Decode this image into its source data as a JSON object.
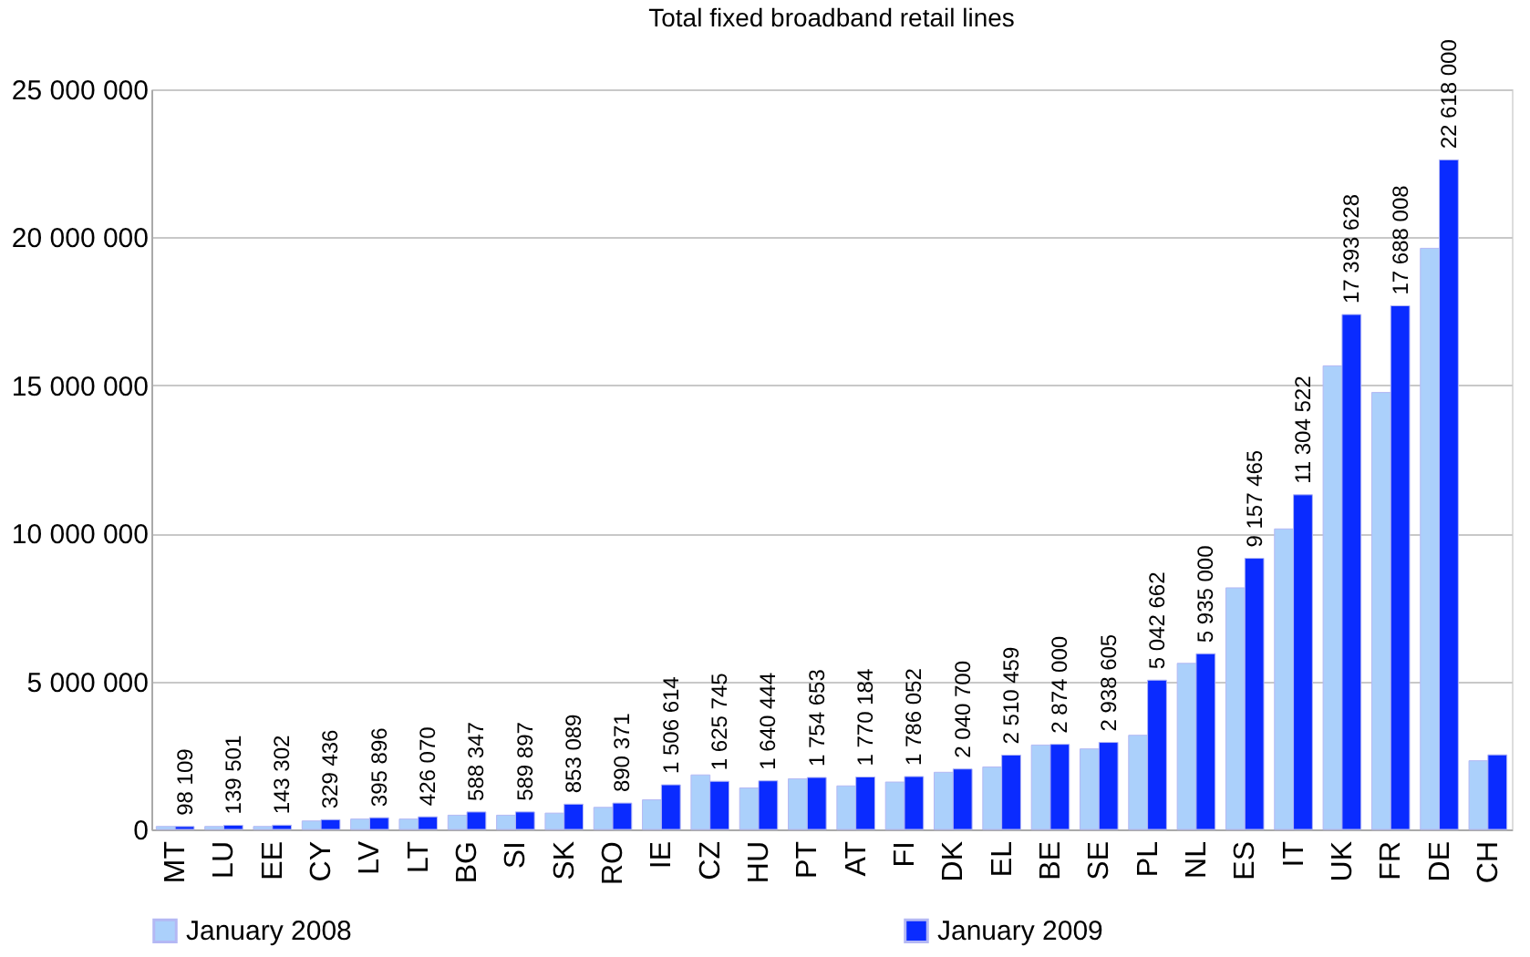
{
  "chart_data": {
    "type": "bar",
    "title": "Total fixed broadband retail lines",
    "categories": [
      "MT",
      "LU",
      "EE",
      "CY",
      "LV",
      "LT",
      "BG",
      "SI",
      "SK",
      "RO",
      "IE",
      "CZ",
      "HU",
      "PT",
      "AT",
      "FI",
      "DK",
      "EL",
      "BE",
      "SE",
      "PL",
      "NL",
      "ES",
      "IT",
      "UK",
      "FR",
      "DE",
      "CH"
    ],
    "series": [
      {
        "name": "January 2008",
        "color": "#abd0fb",
        "values": [
          100000,
          100000,
          100000,
          285000,
          350000,
          350000,
          480000,
          480000,
          550000,
          745000,
          1000000,
          1840000,
          1400000,
          1710000,
          1470000,
          1600000,
          1930000,
          2110000,
          2850000,
          2720000,
          3180000,
          5610000,
          8160000,
          10150000,
          15660000,
          14760000,
          19630000,
          2320000
        ]
      },
      {
        "name": "January 2009",
        "color": "#0a2bff",
        "values": [
          98109,
          139501,
          143302,
          329436,
          395896,
          426070,
          588347,
          589897,
          853089,
          890371,
          1506614,
          1625745,
          1640444,
          1754653,
          1770184,
          1786052,
          2040700,
          2510459,
          2874000,
          2938605,
          5042662,
          5935000,
          9157465,
          11304522,
          17393628,
          17688008,
          22618000,
          2520000
        ],
        "value_labels": [
          "98 109",
          "139 501",
          "143 302",
          "329 436",
          "395 896",
          "426 070",
          "588 347",
          "589 897",
          "853 089",
          "890 371",
          "1 506 614",
          "1 625 745",
          "1 640 444",
          "1 754 653",
          "1 770 184",
          "1 786 052",
          "2 040 700",
          "2 510 459",
          "2 874 000",
          "2 938 605",
          "5 042 662",
          "5 935 000",
          "9 157 465",
          "11 304 522",
          "17 393 628",
          "17 688 008",
          "22 618 000",
          null
        ]
      }
    ],
    "ylim": [
      0,
      25000000
    ],
    "yticks": [
      0,
      {
        "value": 5000000,
        "label": "5 000 000"
      },
      {
        "value": 10000000,
        "label": "10 000 000"
      },
      {
        "value": 15000000,
        "label": "15 000 000"
      },
      {
        "value": 20000000,
        "label": "20 000 000"
      },
      {
        "value": 25000000,
        "label": "25 000 000"
      }
    ],
    "grid": "y",
    "legend": "bottom"
  }
}
